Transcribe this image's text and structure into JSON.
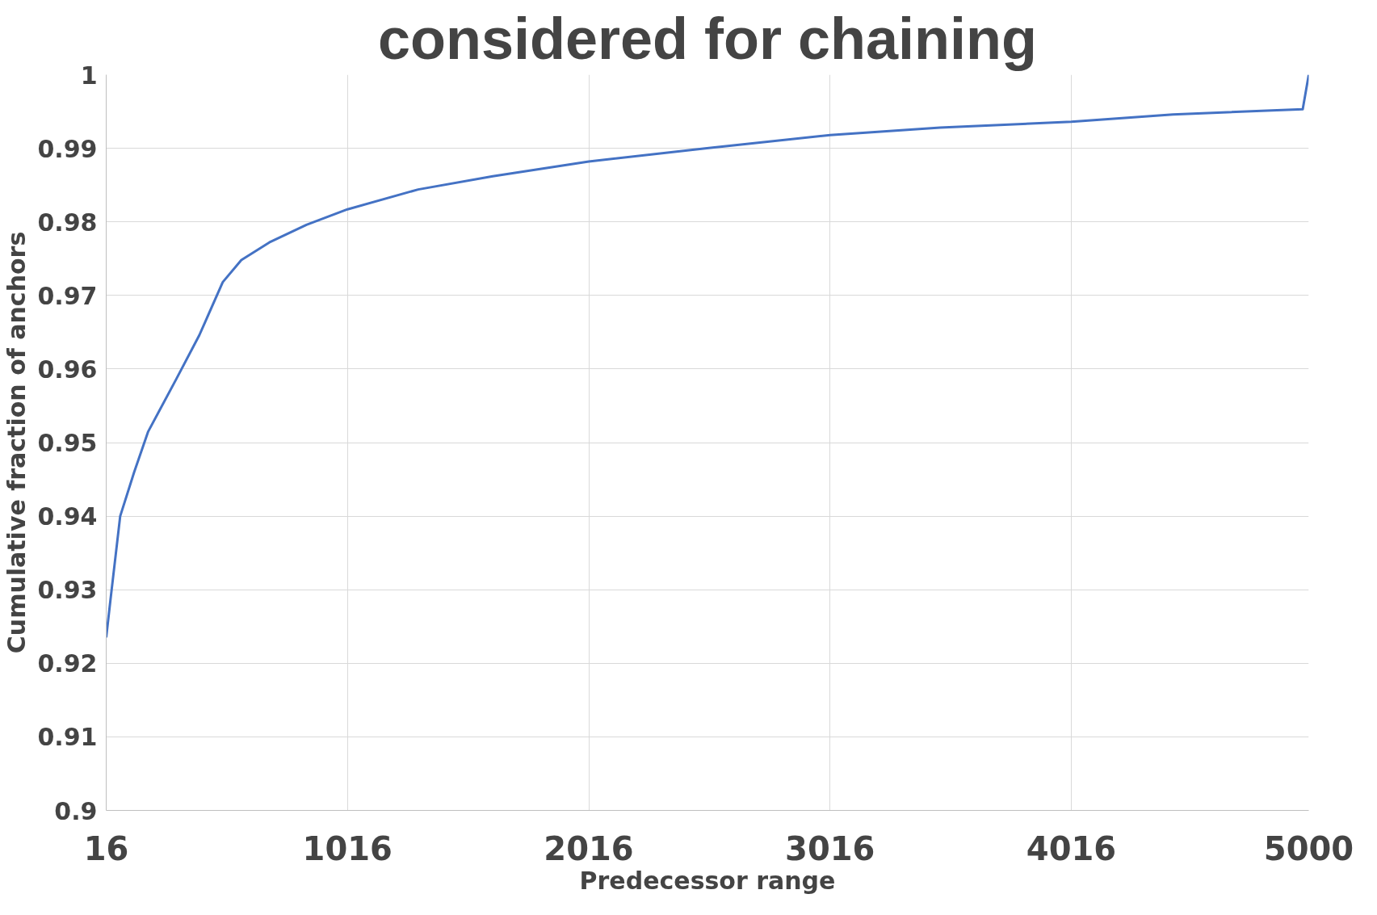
{
  "chart_data": {
    "type": "line",
    "title": "considered for chaining",
    "xlabel": "Predecessor range",
    "ylabel": "Cumulative fraction of anchors",
    "x": [
      16,
      35,
      74,
      132,
      190,
      306,
      402,
      499,
      576,
      692,
      846,
      1016,
      1309,
      1618,
      2016,
      2506,
      3016,
      3472,
      4016,
      4437,
      4975,
      5000
    ],
    "series": [
      {
        "color": "#4472c4",
        "values": [
          0.9235,
          0.929,
          0.94,
          0.946,
          0.9515,
          0.9586,
          0.9646,
          0.9718,
          0.9748,
          0.9772,
          0.9796,
          0.9817,
          0.9844,
          0.9862,
          0.9882,
          0.99,
          0.9918,
          0.9928,
          0.9936,
          0.9946,
          0.9953,
          1.0
        ]
      }
    ],
    "xlim": [
      16,
      5000
    ],
    "xticks": [
      16,
      1016,
      2016,
      3016,
      4016,
      5000
    ],
    "ylim": [
      0.9,
      1
    ],
    "yticks": [
      0.9,
      0.91,
      0.92,
      0.93,
      0.94,
      0.95,
      0.96,
      0.97,
      0.98,
      0.99,
      {
        "value": 1,
        "label": "1"
      }
    ],
    "grid": true,
    "marker": "none",
    "line_style": "solid"
  }
}
